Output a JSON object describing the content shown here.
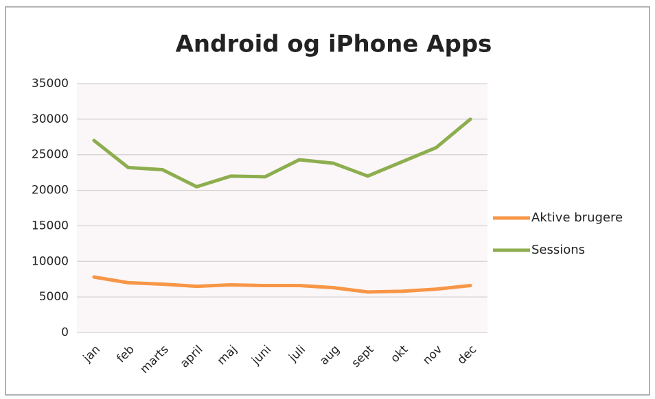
{
  "chart_data": {
    "type": "line",
    "title": "Android og iPhone Apps",
    "categories": [
      "jan",
      "feb",
      "marts",
      "april",
      "maj",
      "juni",
      "juli",
      "aug",
      "sept",
      "okt",
      "nov",
      "dec"
    ],
    "series": [
      {
        "name": "Aktive brugere",
        "color": "#f79646",
        "values": [
          7800,
          7000,
          6800,
          6500,
          6700,
          6600,
          6600,
          6300,
          5700,
          5800,
          6100,
          6600
        ]
      },
      {
        "name": "Sessions",
        "color": "#8dae4f",
        "values": [
          27000,
          23200,
          22900,
          20500,
          22000,
          21900,
          24300,
          23800,
          22000,
          24000,
          26000,
          30000
        ]
      }
    ],
    "ylim": [
      0,
      35000
    ],
    "yticks": [
      0,
      5000,
      10000,
      15000,
      20000,
      25000,
      30000,
      35000
    ],
    "grid": true,
    "legend": "right"
  }
}
